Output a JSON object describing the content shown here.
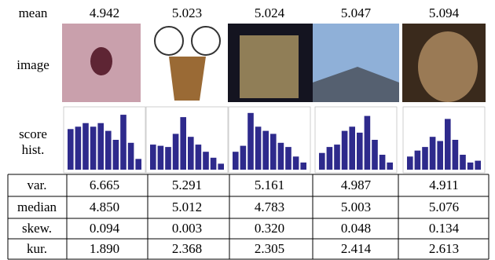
{
  "mean_row": {
    "label": "mean",
    "values": [
      "4.942",
      "5.023",
      "5.024",
      "5.047",
      "5.094"
    ]
  },
  "image_row": {
    "label": "image"
  },
  "hist_row": {
    "label": [
      "score",
      "hist."
    ],
    "color": "#2e2a8c",
    "ylim": [
      0,
      1
    ],
    "histograms": [
      {
        "values": [
          0.68,
          0.72,
          0.78,
          0.72,
          0.78,
          0.65,
          0.5,
          0.92,
          0.45,
          0.18
        ]
      },
      {
        "values": [
          0.42,
          0.4,
          0.38,
          0.6,
          0.88,
          0.55,
          0.42,
          0.3,
          0.2,
          0.1
        ]
      },
      {
        "values": [
          0.3,
          0.4,
          0.95,
          0.72,
          0.65,
          0.6,
          0.45,
          0.38,
          0.22,
          0.12
        ]
      },
      {
        "values": [
          0.28,
          0.38,
          0.42,
          0.65,
          0.72,
          0.62,
          0.9,
          0.5,
          0.25,
          0.12
        ]
      },
      {
        "values": [
          0.22,
          0.32,
          0.38,
          0.55,
          0.48,
          0.85,
          0.5,
          0.25,
          0.12,
          0.15
        ]
      }
    ]
  },
  "table": {
    "rows": [
      [
        "var.",
        "6.665",
        "5.291",
        "5.161",
        "4.987",
        "4.911"
      ],
      [
        "median",
        "4.850",
        "5.012",
        "4.783",
        "5.003",
        "5.076"
      ],
      [
        "skew.",
        "0.094",
        "0.003",
        "0.320",
        "0.048",
        "0.134"
      ],
      [
        "kur.",
        "1.890",
        "2.368",
        "2.305",
        "2.414",
        "2.613"
      ]
    ]
  }
}
